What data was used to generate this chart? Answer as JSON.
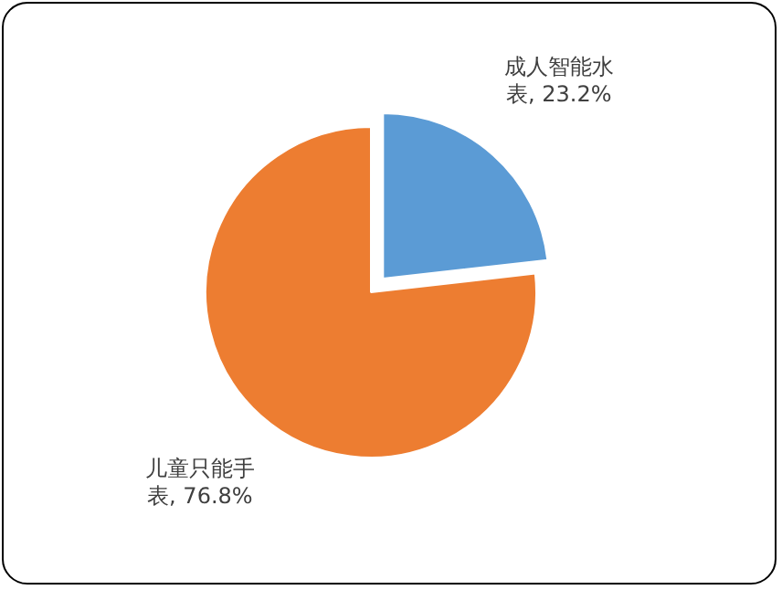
{
  "chart_data": {
    "type": "pie",
    "categories": [
      "成人智能水表",
      "儿童只能手表"
    ],
    "values": [
      23.2,
      76.8
    ],
    "value_labels": [
      "23.2%",
      "76.8%"
    ],
    "colors": [
      "#5b9bd5",
      "#ed7d31"
    ],
    "legend": false
  }
}
